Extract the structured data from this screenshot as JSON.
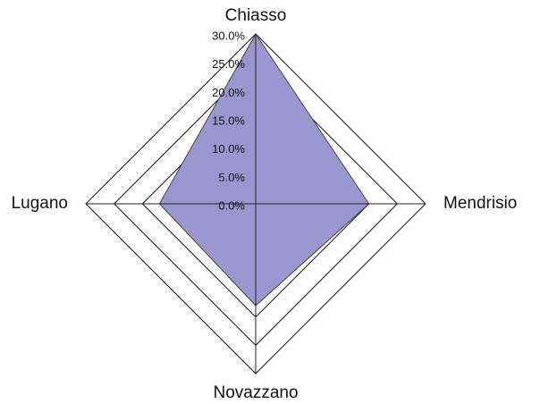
{
  "chart_data": {
    "type": "radar",
    "categories": [
      "Chiasso",
      "Mendrisio",
      "Novazzano",
      "Lugano"
    ],
    "series": [
      {
        "name": null,
        "color": "#9b96cf",
        "values": [
          30,
          20,
          18,
          17
        ]
      }
    ],
    "ylim": [
      0,
      30
    ],
    "yticks": [
      {
        "value": 0,
        "label": "0.0%"
      },
      {
        "value": 5,
        "label": "5.0%"
      },
      {
        "value": 10,
        "label": "10.0%"
      },
      {
        "value": 15,
        "label": "15.0%"
      },
      {
        "value": 20,
        "label": "20.0%"
      },
      {
        "value": 25,
        "label": "25.0%"
      },
      {
        "value": 30,
        "label": "30.0%"
      }
    ],
    "grid": true
  }
}
